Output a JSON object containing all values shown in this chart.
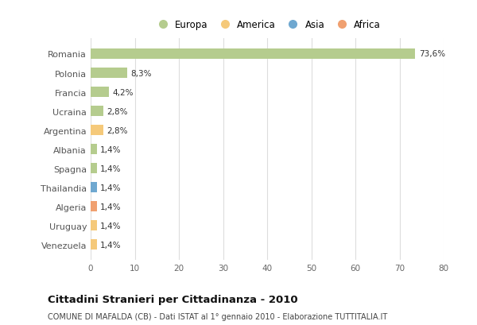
{
  "categories": [
    "Romania",
    "Polonia",
    "Francia",
    "Ucraina",
    "Argentina",
    "Albania",
    "Spagna",
    "Thailandia",
    "Algeria",
    "Uruguay",
    "Venezuela"
  ],
  "values": [
    73.6,
    8.3,
    4.2,
    2.8,
    2.8,
    1.4,
    1.4,
    1.4,
    1.4,
    1.4,
    1.4
  ],
  "colors": [
    "#b5cc8e",
    "#b5cc8e",
    "#b5cc8e",
    "#b5cc8e",
    "#f5c97a",
    "#b5cc8e",
    "#b5cc8e",
    "#6fa8d0",
    "#f0a070",
    "#f5c97a",
    "#f5c97a"
  ],
  "labels": [
    "73,6%",
    "8,3%",
    "4,2%",
    "2,8%",
    "2,8%",
    "1,4%",
    "1,4%",
    "1,4%",
    "1,4%",
    "1,4%",
    "1,4%"
  ],
  "legend_labels": [
    "Europa",
    "America",
    "Asia",
    "Africa"
  ],
  "legend_colors": [
    "#b5cc8e",
    "#f5c97a",
    "#6fa8d0",
    "#f0a070"
  ],
  "title": "Cittadini Stranieri per Cittadinanza - 2010",
  "subtitle": "COMUNE DI MAFALDA (CB) - Dati ISTAT al 1° gennaio 2010 - Elaborazione TUTTITALIA.IT",
  "xlim": [
    0,
    80
  ],
  "xticks": [
    0,
    10,
    20,
    30,
    40,
    50,
    60,
    70,
    80
  ],
  "bg_color": "#ffffff",
  "grid_color": "#dddddd"
}
